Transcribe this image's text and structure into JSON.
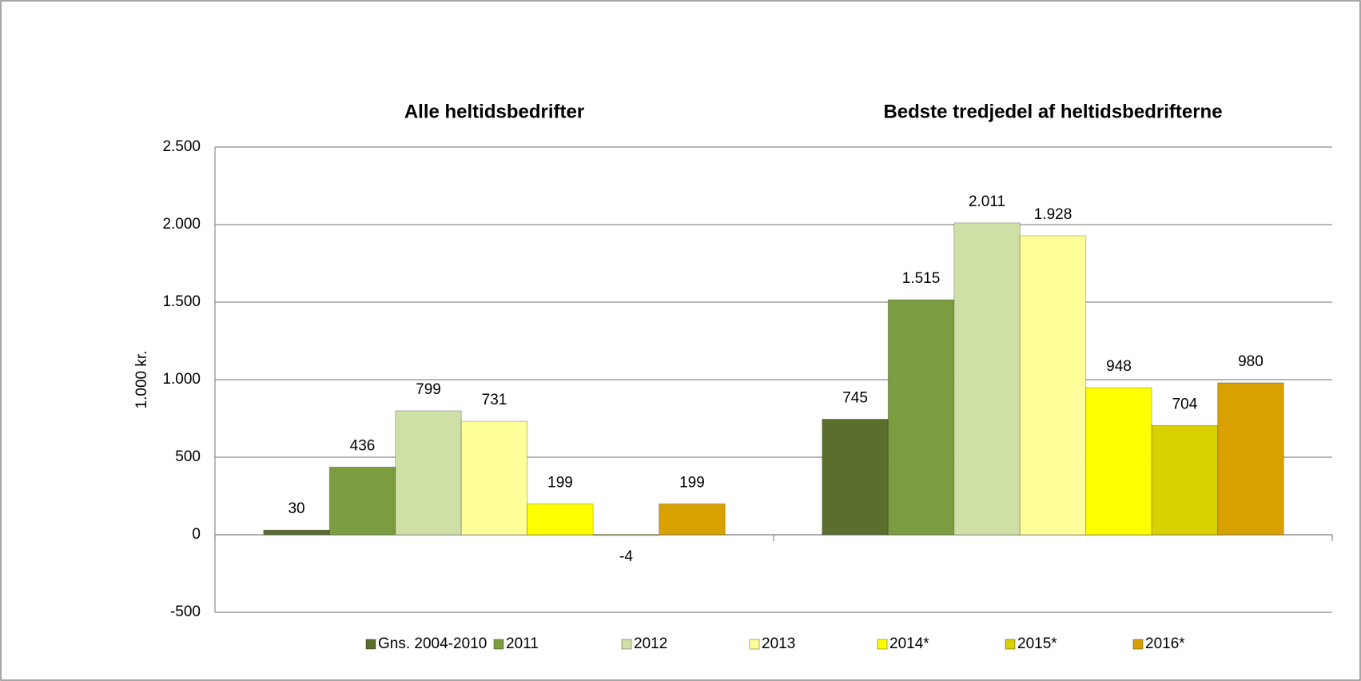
{
  "chart_data": {
    "type": "bar",
    "y_label": "1.000 kr.",
    "categories": [
      "Alle heltidsbedrifter",
      "Bedste tredjedel af heltidsbedrifterne"
    ],
    "series": [
      {
        "name": "Gns. 2004-2010",
        "color": "#5a6e2e",
        "values": [
          30,
          745
        ]
      },
      {
        "name": "2011",
        "color": "#7b9c3f",
        "values": [
          436,
          1515
        ],
        "value_labels": [
          "436",
          "1.515"
        ]
      },
      {
        "name": "2012",
        "color": "#cfe0a6",
        "values": [
          799,
          2011
        ],
        "value_labels": [
          "799",
          "2.011"
        ]
      },
      {
        "name": "2013",
        "color": "#ffff99",
        "values": [
          731,
          1928
        ],
        "value_labels": [
          "731",
          "1.928"
        ]
      },
      {
        "name": "2014*",
        "color": "#ffff00",
        "values": [
          199,
          948
        ]
      },
      {
        "name": "2015*",
        "color": "#d8d000",
        "values": [
          -4,
          704
        ]
      },
      {
        "name": "2016*",
        "color": "#d9a100",
        "values": [
          199,
          980
        ]
      }
    ],
    "ylim": [
      -500,
      2500
    ],
    "yticks": [
      {
        "value": -500,
        "label": "-500"
      },
      0,
      500,
      {
        "value": 1000,
        "label": "1.000"
      },
      {
        "value": 1500,
        "label": "1.500"
      },
      {
        "value": 2000,
        "label": "2.000"
      },
      {
        "value": 2500,
        "label": "2.500"
      }
    ],
    "grid": true,
    "legend": "bottom"
  }
}
